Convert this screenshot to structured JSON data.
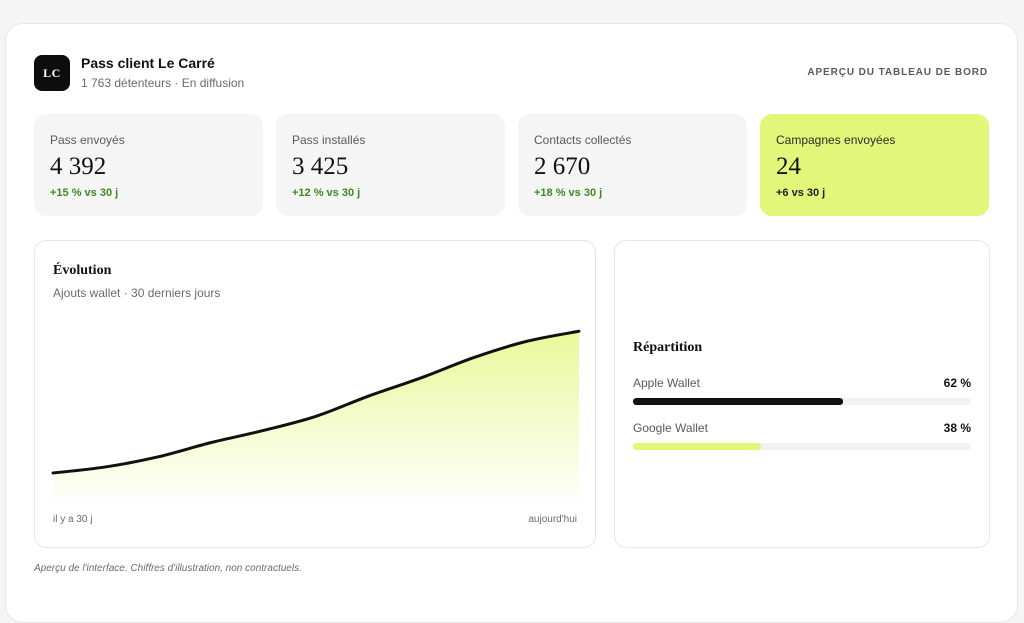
{
  "header": {
    "logo_text": "LC",
    "title": "Pass client Le Carré",
    "subtitle": "1 763 détenteurs · En diffusion",
    "overview_label": "APERÇU DU TABLEAU DE BORD"
  },
  "kpis": [
    {
      "label": "Pass envoyés",
      "value": "4 392",
      "delta": "+15 % vs 30 j"
    },
    {
      "label": "Pass installés",
      "value": "3 425",
      "delta": "+12 % vs 30 j"
    },
    {
      "label": "Contacts collectés",
      "value": "2 670",
      "delta": "+18 % vs 30 j"
    },
    {
      "label": "Campagnes envoyées",
      "value": "24",
      "delta": "+6 vs 30 j"
    }
  ],
  "colors": {
    "accent": "#e2f67a",
    "dark": "#111111",
    "positive": "#3d8a1f"
  },
  "evolution": {
    "title": "Évolution",
    "subtitle": "Ajouts wallet · 30 derniers jours",
    "x_start_label": "il y a 30 j",
    "x_end_label": "aujourd'hui",
    "chart_data": {
      "type": "area",
      "x": [
        0,
        3,
        6,
        9,
        12,
        15,
        18,
        21,
        24,
        27,
        30
      ],
      "values": [
        0,
        3,
        8,
        15,
        21,
        28,
        38,
        47,
        57,
        65,
        70
      ],
      "ylim": [
        0,
        80
      ]
    }
  },
  "repartition": {
    "title": "Répartition",
    "items": [
      {
        "name": "Apple Wallet",
        "percent_label": "62 %",
        "share": 0.62,
        "color": "#111111"
      },
      {
        "name": "Google Wallet",
        "percent_label": "38 %",
        "share": 0.38,
        "color": "#e2f67a"
      }
    ]
  },
  "footnote": "Aperçu de l'interface. Chiffres d'illustration, non contractuels."
}
